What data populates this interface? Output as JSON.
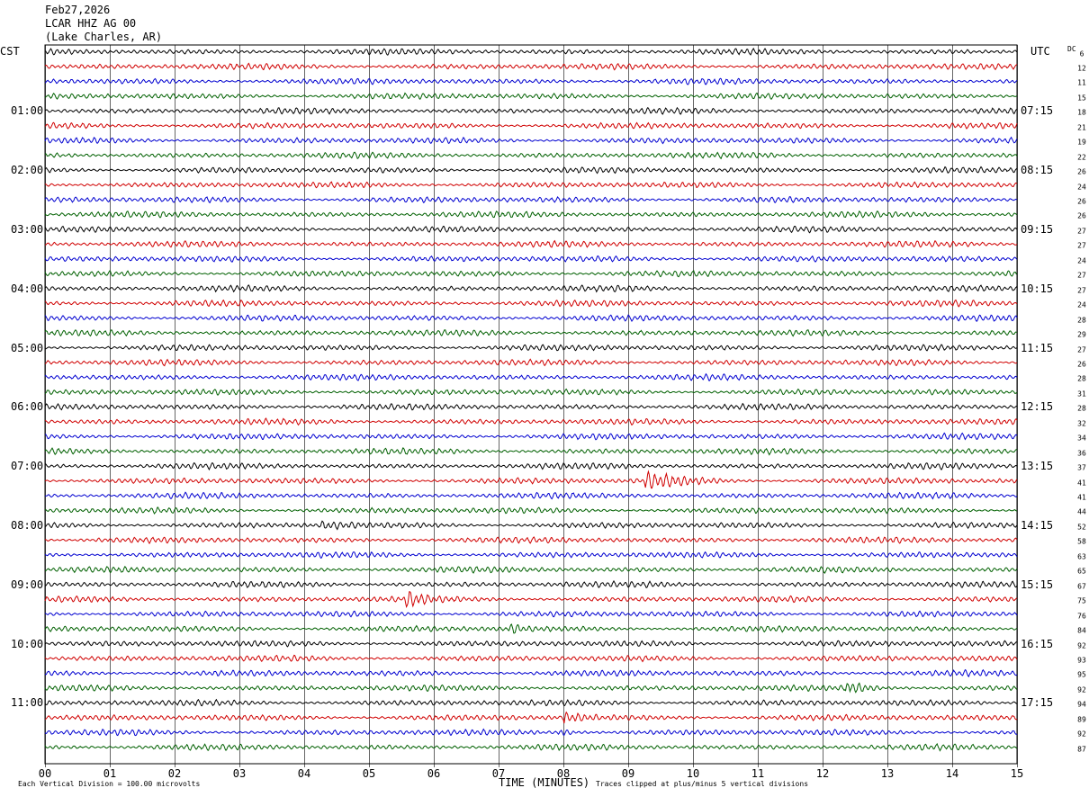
{
  "header": {
    "date": "Feb27,2026",
    "station": "LCAR HHZ AG 00",
    "location": "(Lake Charles, AR)"
  },
  "labels": {
    "left_tz": "CST",
    "right_tz": "UTC",
    "dc_title": "DC",
    "footnote_left": "Each Vertical Division =  100.00 microvolts",
    "footnote_right": "Traces clipped at plus/minus 5 vertical divisions"
  },
  "colors": {
    "trace_cycle": [
      "#000000",
      "#d00000",
      "#0000d0",
      "#006000"
    ],
    "grid": "#000000"
  },
  "chart_data": {
    "type": "line",
    "title": "LCAR HHZ AG 00",
    "xlabel": "TIME (MINUTES)",
    "ylabel": "",
    "x_ticks": [
      "00",
      "01",
      "02",
      "03",
      "04",
      "05",
      "06",
      "07",
      "08",
      "09",
      "10",
      "11",
      "12",
      "13",
      "14",
      "15"
    ],
    "xlim": [
      0,
      15
    ],
    "rows_per_hour": 4,
    "row_minutes": 15,
    "left_hour_labels": [
      "01:00",
      "02:00",
      "03:00",
      "04:00",
      "05:00",
      "06:00",
      "07:00",
      "08:00",
      "09:00",
      "10:00",
      "11:00"
    ],
    "right_hour_labels": [
      "07:15",
      "08:15",
      "09:15",
      "10:15",
      "11:15",
      "12:15",
      "13:15",
      "14:15",
      "15:15",
      "16:15",
      "17:15"
    ],
    "dc_values": [
      "6",
      "12",
      "11",
      "15",
      "18",
      "21",
      "19",
      "22",
      "26",
      "24",
      "26",
      "26",
      "27",
      "27",
      "24",
      "27",
      "27",
      "24",
      "28",
      "29",
      "27",
      "26",
      "28",
      "31",
      "28",
      "32",
      "34",
      "36",
      "37",
      "41",
      "41",
      "44",
      "52",
      "58",
      "63",
      "65",
      "67",
      "75",
      "76",
      "84",
      "92",
      "93",
      "95",
      "92",
      "94",
      "89",
      "92",
      "87"
    ],
    "events": [
      {
        "row": 29,
        "minute": 9.3,
        "duration": 0.5,
        "strength": 3.0
      },
      {
        "row": 32,
        "minute": 4.3,
        "duration": 0.3,
        "strength": 1.4
      },
      {
        "row": 37,
        "minute": 5.6,
        "duration": 0.2,
        "strength": 2.2
      },
      {
        "row": 39,
        "minute": 7.2,
        "duration": 0.15,
        "strength": 2.0
      },
      {
        "row": 43,
        "minute": 12.4,
        "duration": 0.4,
        "strength": 2.2
      },
      {
        "row": 45,
        "minute": 8.05,
        "duration": 0.2,
        "strength": 2.0
      },
      {
        "row": 46,
        "minute": 7.95,
        "duration": 0.25,
        "strength": 2.4
      }
    ]
  }
}
